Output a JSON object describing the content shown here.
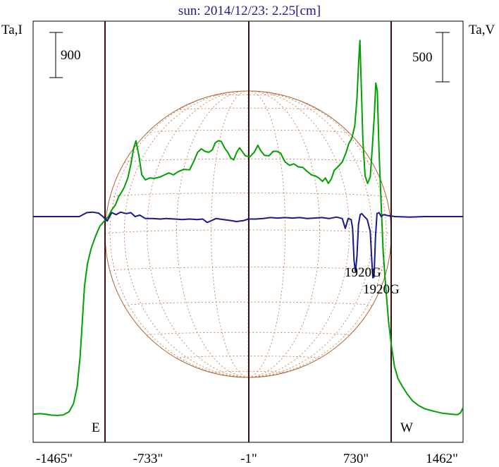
{
  "chart_data": {
    "type": "line",
    "title": "sun: 2014/12/23: 2.25[cm]",
    "left_axis_label": "Ta,I",
    "right_axis_label": "Ta,V",
    "left_scale_label": "900",
    "right_scale_label": "500",
    "x_tick_labels": [
      "-1465\"",
      "-733\"",
      "-1\"",
      "730\"",
      "1462\""
    ],
    "x_ticks": [
      -1465,
      -733,
      -1,
      730,
      1462
    ],
    "xlim": [
      -1465,
      1462
    ],
    "limb_labels": {
      "east": "E",
      "west": "W"
    },
    "annotations": [
      "1920G",
      "1920G"
    ],
    "annotation_x": [
      730,
      885
    ],
    "grid": false,
    "series": [
      {
        "name": "Ta,I",
        "color": "#00a000",
        "points": [
          [
            -1465,
            350
          ],
          [
            -1420,
            360
          ],
          [
            -1380,
            350
          ],
          [
            -1340,
            330
          ],
          [
            -1300,
            325
          ],
          [
            -1260,
            335
          ],
          [
            -1220,
            400
          ],
          [
            -1190,
            560
          ],
          [
            -1165,
            900
          ],
          [
            -1145,
            1500
          ],
          [
            -1130,
            2200
          ],
          [
            -1115,
            2900
          ],
          [
            -1095,
            3350
          ],
          [
            -1070,
            3650
          ],
          [
            -1040,
            3900
          ],
          [
            -1010,
            4100
          ],
          [
            -980,
            4200
          ],
          [
            -955,
            4280
          ],
          [
            -930,
            4420
          ],
          [
            -905,
            4520
          ],
          [
            -880,
            4700
          ],
          [
            -860,
            4790
          ],
          [
            -845,
            4870
          ],
          [
            -820,
            5060
          ],
          [
            -800,
            5330
          ],
          [
            -780,
            5660
          ],
          [
            -765,
            5800
          ],
          [
            -745,
            5500
          ],
          [
            -725,
            5120
          ],
          [
            -700,
            5020
          ],
          [
            -670,
            5060
          ],
          [
            -640,
            5050
          ],
          [
            -600,
            5080
          ],
          [
            -570,
            5120
          ],
          [
            -540,
            5160
          ],
          [
            -510,
            5120
          ],
          [
            -480,
            5180
          ],
          [
            -440,
            5230
          ],
          [
            -400,
            5220
          ],
          [
            -370,
            5400
          ],
          [
            -345,
            5570
          ],
          [
            -320,
            5640
          ],
          [
            -295,
            5590
          ],
          [
            -270,
            5570
          ],
          [
            -245,
            5620
          ],
          [
            -225,
            5760
          ],
          [
            -205,
            5800
          ],
          [
            -185,
            5790
          ],
          [
            -160,
            5650
          ],
          [
            -140,
            5570
          ],
          [
            -120,
            5460
          ],
          [
            -100,
            5420
          ],
          [
            -80,
            5560
          ],
          [
            -60,
            5660
          ],
          [
            -40,
            5580
          ],
          [
            -20,
            5500
          ],
          [
            10,
            5480
          ],
          [
            40,
            5570
          ],
          [
            65,
            5710
          ],
          [
            85,
            5600
          ],
          [
            110,
            5510
          ],
          [
            140,
            5500
          ],
          [
            170,
            5590
          ],
          [
            195,
            5590
          ],
          [
            220,
            5550
          ],
          [
            250,
            5380
          ],
          [
            280,
            5310
          ],
          [
            310,
            5340
          ],
          [
            340,
            5280
          ],
          [
            370,
            5270
          ],
          [
            400,
            5190
          ],
          [
            430,
            5120
          ],
          [
            455,
            5100
          ],
          [
            480,
            5060
          ],
          [
            505,
            4990
          ],
          [
            525,
            5060
          ],
          [
            545,
            4950
          ],
          [
            565,
            5040
          ],
          [
            585,
            5210
          ],
          [
            610,
            5280
          ],
          [
            640,
            5380
          ],
          [
            665,
            5560
          ],
          [
            685,
            5750
          ],
          [
            705,
            5850
          ],
          [
            725,
            6100
          ],
          [
            740,
            6650
          ],
          [
            752,
            7400
          ],
          [
            760,
            7800
          ],
          [
            770,
            6800
          ],
          [
            780,
            5800
          ],
          [
            795,
            5100
          ],
          [
            812,
            4950
          ],
          [
            830,
            5080
          ],
          [
            845,
            5700
          ],
          [
            858,
            6300
          ],
          [
            868,
            6950
          ],
          [
            878,
            6800
          ],
          [
            890,
            5600
          ],
          [
            905,
            4500
          ],
          [
            918,
            3600
          ],
          [
            935,
            2900
          ],
          [
            955,
            2200
          ],
          [
            975,
            1700
          ],
          [
            995,
            1300
          ],
          [
            1020,
            1050
          ],
          [
            1050,
            900
          ],
          [
            1080,
            760
          ],
          [
            1120,
            610
          ],
          [
            1160,
            520
          ],
          [
            1200,
            460
          ],
          [
            1260,
            410
          ],
          [
            1320,
            370
          ],
          [
            1380,
            350
          ],
          [
            1425,
            340
          ],
          [
            1445,
            380
          ],
          [
            1462,
            480
          ]
        ]
      },
      {
        "name": "Ta,V",
        "color": "#1a1a8c",
        "points": [
          [
            -1465,
            0
          ],
          [
            -1300,
            0
          ],
          [
            -1200,
            0
          ],
          [
            -1150,
            0
          ],
          [
            -1100,
            40
          ],
          [
            -1060,
            45
          ],
          [
            -1020,
            35
          ],
          [
            -990,
            0
          ],
          [
            -960,
            -45
          ],
          [
            -930,
            40
          ],
          [
            -900,
            20
          ],
          [
            -870,
            45
          ],
          [
            -830,
            30
          ],
          [
            -800,
            40
          ],
          [
            -770,
            0
          ],
          [
            -740,
            15
          ],
          [
            -700,
            -20
          ],
          [
            -650,
            -20
          ],
          [
            -600,
            -25
          ],
          [
            -560,
            -20
          ],
          [
            -500,
            -25
          ],
          [
            -450,
            -30
          ],
          [
            -400,
            -25
          ],
          [
            -350,
            -30
          ],
          [
            -310,
            -25
          ],
          [
            -280,
            -60
          ],
          [
            -250,
            -40
          ],
          [
            -220,
            -20
          ],
          [
            -170,
            -30
          ],
          [
            -120,
            -40
          ],
          [
            -80,
            -50
          ],
          [
            -30,
            -40
          ],
          [
            0,
            -25
          ],
          [
            50,
            -25
          ],
          [
            100,
            -20
          ],
          [
            150,
            -10
          ],
          [
            200,
            -15
          ],
          [
            250,
            -10
          ],
          [
            300,
            -15
          ],
          [
            350,
            -10
          ],
          [
            400,
            -20
          ],
          [
            450,
            -15
          ],
          [
            500,
            -10
          ],
          [
            550,
            -20
          ],
          [
            600,
            -5
          ],
          [
            640,
            -20
          ],
          [
            660,
            -120
          ],
          [
            680,
            -20
          ],
          [
            700,
            -30
          ],
          [
            710,
            -120
          ],
          [
            720,
            -450
          ],
          [
            730,
            -560
          ],
          [
            740,
            -400
          ],
          [
            750,
            -80
          ],
          [
            762,
            20
          ],
          [
            772,
            30
          ],
          [
            790,
            0
          ],
          [
            810,
            -30
          ],
          [
            830,
            -150
          ],
          [
            840,
            -430
          ],
          [
            848,
            -620
          ],
          [
            856,
            -610
          ],
          [
            866,
            -200
          ],
          [
            876,
            30
          ],
          [
            890,
            40
          ],
          [
            905,
            0
          ],
          [
            920,
            20
          ],
          [
            950,
            10
          ],
          [
            1000,
            0
          ],
          [
            1100,
            -5
          ],
          [
            1200,
            0
          ],
          [
            1300,
            0
          ],
          [
            1462,
            0
          ]
        ]
      }
    ]
  }
}
